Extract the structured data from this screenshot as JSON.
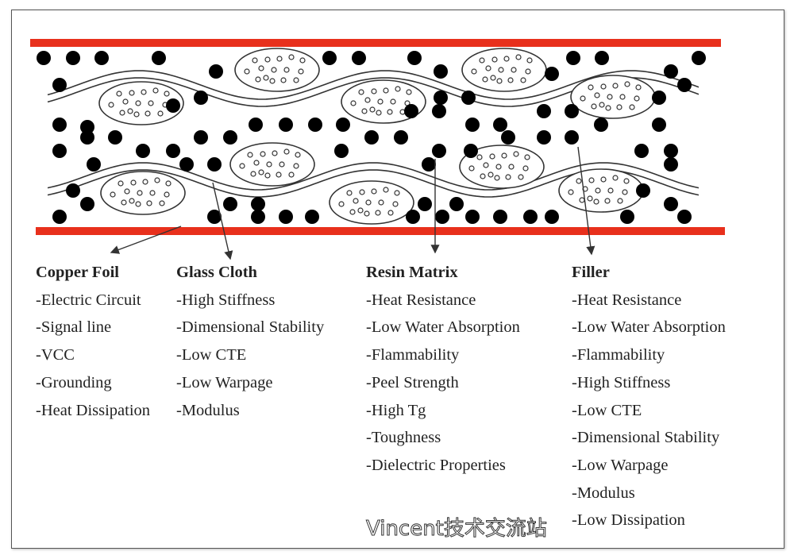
{
  "colors": {
    "copper_layer": "#e8301c",
    "filler_dot": "#000000",
    "line": "#333333"
  },
  "components": [
    {
      "title": "Copper Foil",
      "items": [
        "-Electric Circuit",
        "-Signal line",
        "-VCC",
        "-Grounding",
        "-Heat Dissipation"
      ]
    },
    {
      "title": "Glass Cloth",
      "items": [
        "-High Stiffness",
        "-Dimensional Stability",
        "-Low CTE",
        "-Low Warpage",
        "-Modulus"
      ]
    },
    {
      "title": "Resin Matrix",
      "items": [
        "-Heat Resistance",
        "-Low Water Absorption",
        "-Flammability",
        "-Peel Strength",
        "-High Tg",
        "-Toughness",
        "-Dielectric Properties"
      ]
    },
    {
      "title": "Filler",
      "items": [
        "-Heat Resistance",
        "-Low Water Absorption",
        "-Flammability",
        "-High Stiffness",
        "-Low CTE",
        "-Dimensional Stability",
        "-Low Warpage",
        "-Modulus",
        "-Low Dissipation"
      ]
    }
  ],
  "watermark": "Vincent技术交流站"
}
